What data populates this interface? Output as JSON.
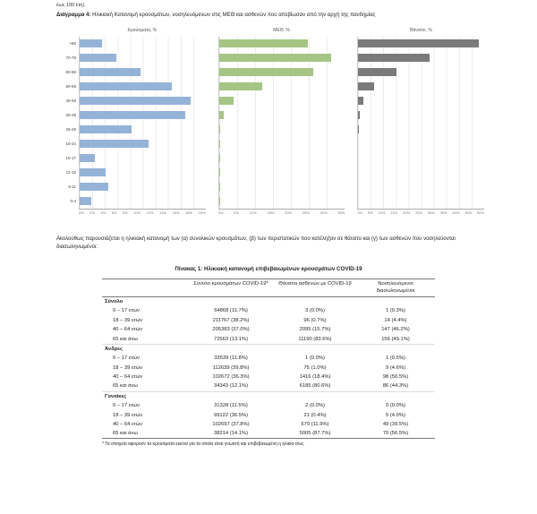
{
  "page": {
    "top_fragment": "έως 100 έτη).",
    "figure_caption_label": "Διάγραμμα 4:",
    "figure_caption_text": "Ηλικιακή Κατανομή κρουσμάτων, νοσηλευόμενων στις ΜΕΘ και ασθενών που απεβίωσαν από την αρχή της πανδημίας",
    "paragraph": "Ακολούθως παρουσιάζεται η ηλικιακή κατανομή των (α) συνολικών κρουσμάτων, (β) των περιστατικών που κατέληξαν σε θάνατο και (γ) των ασθενών που νοσηλεύονται διασωληνωμένοι:",
    "table_title": "Πίνακας 1: Ηλικιακή κατανομή επιβεβαιωμένων κρουσμάτων COVID-19",
    "footnote": "* Τα στοιχεία αφορούν τα κρούσματα εκείνα για τα οποία είναι γνωστή και επιβεβαιωμένη η ηλικία τους"
  },
  "chart_data": {
    "type": "bar",
    "orientation": "horizontal",
    "categories": [
      ">80",
      "70-79",
      "60-69",
      "50-59",
      "40-49",
      "30-39",
      "25-29",
      "18-24",
      "16-17",
      "12-15",
      "5-11",
      "0-4"
    ],
    "series": [
      {
        "name": "Κρούσματα, %",
        "color": "#95b3d7",
        "xmax": 20,
        "ticks": [
          "0%",
          "2%",
          "4%",
          "6%",
          "8%",
          "10%",
          "12%",
          "14%",
          "16%",
          "18%",
          "20%"
        ],
        "values": [
          3.5,
          5.8,
          9.6,
          14.6,
          17.6,
          16.8,
          8.2,
          10.9,
          2.4,
          4.1,
          4.6,
          1.9
        ]
      },
      {
        "name": "ΜΕΘ, %",
        "color": "#a5c585",
        "xmax": 35,
        "ticks": [
          "0%",
          "5%",
          "10%",
          "15%",
          "20%",
          "25%",
          "30%",
          "35%"
        ],
        "values": [
          24.8,
          31.2,
          26.1,
          11.9,
          4.1,
          1.4,
          0.3,
          0.2,
          0.1,
          0.1,
          0.1,
          0.2
        ]
      },
      {
        "name": "Θάνατοι, %",
        "color": "#7a7a7a",
        "xmax": 50,
        "ticks": [
          "0%",
          "5%",
          "10%",
          "15%",
          "20%",
          "25%",
          "30%",
          "35%",
          "40%",
          "45%",
          "50%"
        ],
        "values": [
          47.9,
          28.3,
          15.1,
          6.2,
          1.9,
          0.5,
          0.1,
          0.0,
          0.0,
          0.0,
          0.0,
          0.0
        ]
      }
    ],
    "legend": "none",
    "grid": true
  },
  "table": {
    "headers": [
      "",
      "Σύνολο κρουσμάτων COVID-19*",
      "Θάνατοι ασθενών με COVID-19",
      "Νοσηλευόμενοι διασωληνωμένοι"
    ],
    "sections": [
      {
        "name": "Σύνολο",
        "rows": [
          {
            "label": "0 – 17 ετών",
            "cases": "64868 (11.7%)",
            "deaths": "3 (0.0%)",
            "intubated": "1 (0.3%)"
          },
          {
            "label": "18 – 39 ετών",
            "cases": "211767 (38.2%)",
            "deaths": "96 (0.7%)",
            "intubated": "14 (4.4%)"
          },
          {
            "label": "40 – 64 ετών",
            "cases": "205383 (37.0%)",
            "deaths": "2095 (15.7%)",
            "intubated": "147 (46.2%)"
          },
          {
            "label": "65 και άνω",
            "cases": "72563 (13.1%)",
            "deaths": "11190 (83.6%)",
            "intubated": "156 (49.1%)"
          }
        ]
      },
      {
        "name": "Άνδρες",
        "rows": [
          {
            "label": "0 – 17 ετών",
            "cases": "33539 (11.8%)",
            "deaths": "1 (0.0%)",
            "intubated": "1 (0.5%)"
          },
          {
            "label": "18 – 39 ετών",
            "cases": "112639 (39.8%)",
            "deaths": "75 (1.0%)",
            "intubated": "9 (4.6%)"
          },
          {
            "label": "40 – 64 ετών",
            "cases": "102672 (36.3%)",
            "deaths": "1416 (18.4%)",
            "intubated": "98 (50.5%)"
          },
          {
            "label": "65 και άνω",
            "cases": "34343 (12.1%)",
            "deaths": "6185 (80.6%)",
            "intubated": "86 (44.3%)"
          }
        ]
      },
      {
        "name": "Γυναίκες",
        "rows": [
          {
            "label": "0 – 17 ετών",
            "cases": "31328 (11.5%)",
            "deaths": "2 (0.0%)",
            "intubated": "0 (0.0%)"
          },
          {
            "label": "18 – 39 ετών",
            "cases": "99122 (36.5%)",
            "deaths": "21 (0.4%)",
            "intubated": "5 (4.0%)"
          },
          {
            "label": "40 – 64 ετών",
            "cases": "102697 (37.8%)",
            "deaths": "679 (11.9%)",
            "intubated": "49 (39.5%)"
          },
          {
            "label": "65 και άνω",
            "cases": "38214 (14.1%)",
            "deaths": "5005 (87.7%)",
            "intubated": "70 (56.5%)"
          }
        ]
      }
    ]
  }
}
